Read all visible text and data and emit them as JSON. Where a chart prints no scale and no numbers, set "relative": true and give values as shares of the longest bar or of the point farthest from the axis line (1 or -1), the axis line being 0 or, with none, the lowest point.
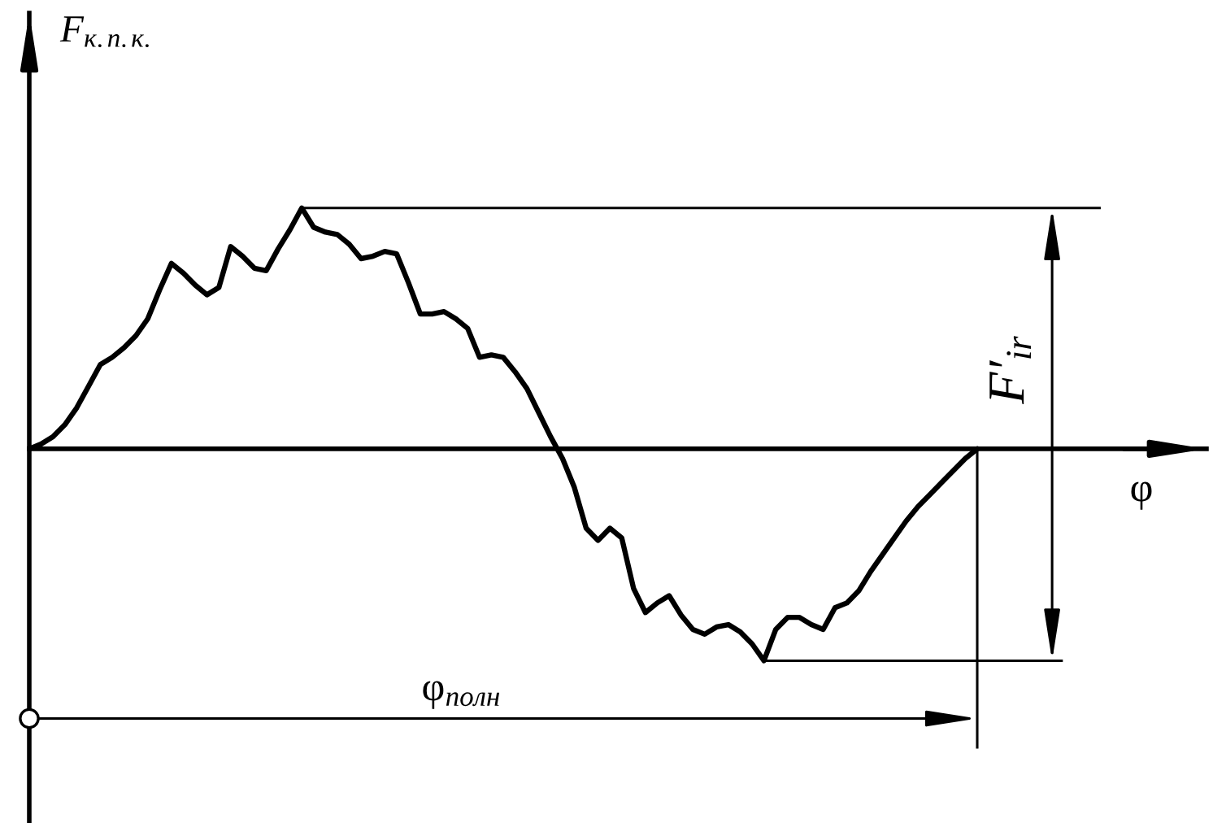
{
  "chart_data": {
    "type": "line",
    "relative": true,
    "tick_labels": false,
    "xlabel": "φ",
    "ylabel": "F$_{к.п.к.}$",
    "categories": [
      null,
      null,
      null,
      null,
      null,
      null,
      null,
      null,
      null,
      null,
      null,
      null,
      null,
      null,
      null,
      null,
      null,
      null,
      null,
      null,
      null,
      null,
      null,
      null,
      null,
      null,
      null,
      null,
      null,
      null,
      null,
      null,
      null,
      null,
      null,
      null,
      null,
      null,
      null,
      null,
      null,
      null,
      null,
      null,
      null,
      null,
      null,
      null,
      null,
      null,
      null,
      null,
      null,
      null,
      null,
      null,
      null,
      null,
      null,
      null,
      null,
      null,
      null,
      null,
      null,
      null,
      null,
      null,
      null,
      null,
      null,
      null,
      null,
      null,
      null,
      null,
      null,
      null,
      null,
      null,
      null
    ],
    "series": [
      {
        "color": "#000000",
        "values": [
          0,
          0.02,
          0.05,
          0.1,
          0.17,
          0.26,
          0.35,
          0.38,
          0.42,
          0.47,
          0.54,
          0.66,
          0.77,
          0.73,
          0.68,
          0.64,
          0.67,
          0.84,
          0.8,
          0.75,
          0.74,
          0.83,
          0.91,
          1,
          0.92,
          0.9,
          0.89,
          0.85,
          0.79,
          0.8,
          0.82,
          0.81,
          0.69,
          0.56,
          0.56,
          0.57,
          0.54,
          0.5,
          0.38,
          0.39,
          0.38,
          0.32,
          0.25,
          0.15,
          0.05,
          -0.04,
          -0.16,
          -0.33,
          -0.38,
          -0.33,
          -0.37,
          -0.58,
          -0.68,
          -0.64,
          -0.61,
          -0.69,
          -0.75,
          -0.77,
          -0.74,
          -0.73,
          -0.76,
          -0.81,
          -0.88,
          -0.75,
          -0.7,
          -0.7,
          -0.73,
          -0.75,
          -0.66,
          -0.64,
          -0.59,
          -0.51,
          -0.44,
          -0.37,
          -0.3,
          -0.24,
          -0.19,
          -0.14,
          -0.09,
          -0.04,
          0
        ]
      }
    ],
    "ref_lines": [
      {
        "axis": "y",
        "value": 1
      },
      {
        "axis": "y",
        "value": -0.88
      }
    ],
    "annotations": [
      "F′$_{ir}$",
      "φ$_{полн}$"
    ]
  }
}
